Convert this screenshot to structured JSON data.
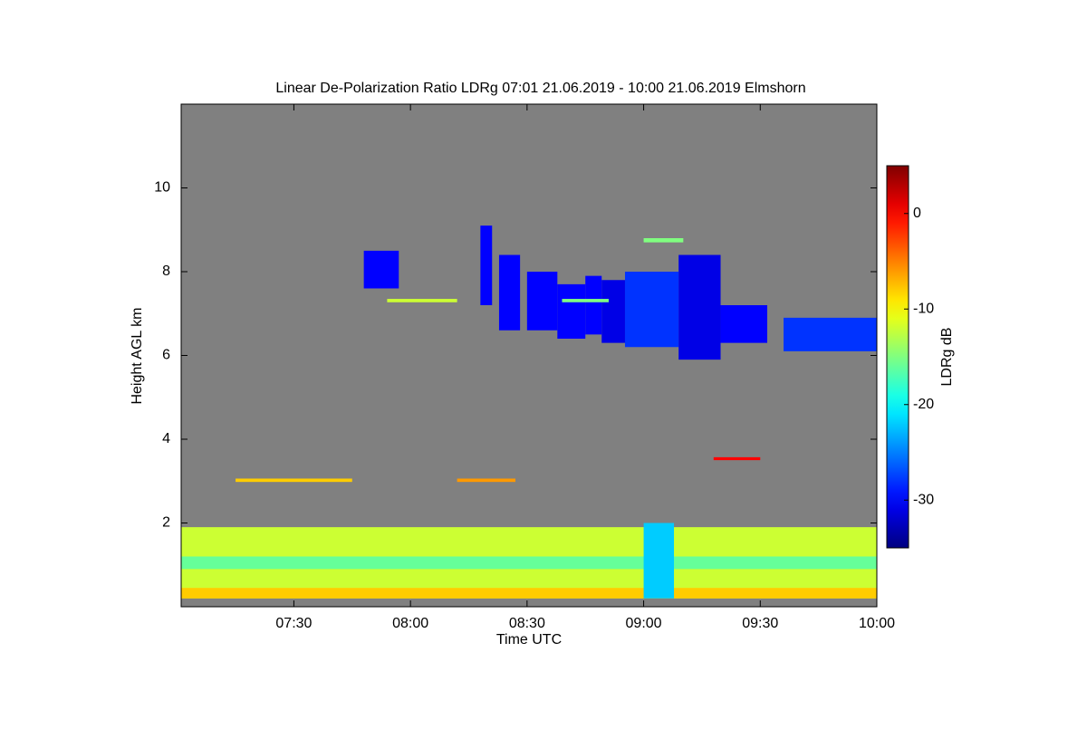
{
  "chart_data": {
    "type": "heatmap",
    "title": "Linear De-Polarization Ratio LDRg   07:01 21.06.2019 - 10:00 21.06.2019 Elmshorn",
    "x_label": "Time UTC",
    "y_label": "Height AGL km",
    "colorbar_label": "LDRg dB",
    "background": "#808080",
    "xlim": [
      7.0167,
      10.0
    ],
    "xticks": [
      {
        "value": 7.5,
        "label": "07:30"
      },
      {
        "value": 8.0,
        "label": "08:00"
      },
      {
        "value": 8.5,
        "label": "08:30"
      },
      {
        "value": 9.0,
        "label": "09:00"
      },
      {
        "value": 9.5,
        "label": "09:30"
      },
      {
        "value": 10.0,
        "label": "10:00"
      }
    ],
    "ylim": [
      0,
      12
    ],
    "yticks": [
      2,
      4,
      6,
      8,
      10
    ],
    "clim": [
      -35,
      5
    ],
    "cticks": [
      -30,
      -20,
      -10,
      0
    ],
    "cells": [
      {
        "x": [
          7.0167,
          10.0
        ],
        "y": [
          0.2,
          1.9
        ],
        "value": -12
      },
      {
        "x": [
          7.0167,
          10.0
        ],
        "y": [
          0.2,
          0.45
        ],
        "value": -8
      },
      {
        "x": [
          7.0167,
          10.0
        ],
        "y": [
          0.9,
          1.2
        ],
        "value": -16
      },
      {
        "x": [
          9.0,
          9.13
        ],
        "y": [
          0.2,
          2.0
        ],
        "value": -22
      },
      {
        "x": [
          7.8,
          7.95
        ],
        "y": [
          7.6,
          8.5
        ],
        "value": -30
      },
      {
        "x": [
          8.3,
          8.35
        ],
        "y": [
          7.2,
          9.1
        ],
        "value": -30
      },
      {
        "x": [
          8.38,
          8.47
        ],
        "y": [
          6.6,
          8.4
        ],
        "value": -30
      },
      {
        "x": [
          8.5,
          8.63
        ],
        "y": [
          6.6,
          8.0
        ],
        "value": -30
      },
      {
        "x": [
          8.63,
          8.75
        ],
        "y": [
          6.4,
          7.7
        ],
        "value": -30
      },
      {
        "x": [
          8.75,
          8.82
        ],
        "y": [
          6.5,
          7.9
        ],
        "value": -30
      },
      {
        "x": [
          8.82,
          8.92
        ],
        "y": [
          6.3,
          7.8
        ],
        "value": -31
      },
      {
        "x": [
          8.92,
          9.15
        ],
        "y": [
          6.2,
          8.0
        ],
        "value": -28
      },
      {
        "x": [
          9.15,
          9.33
        ],
        "y": [
          5.9,
          8.4
        ],
        "value": -31
      },
      {
        "x": [
          9.33,
          9.53
        ],
        "y": [
          6.3,
          7.2
        ],
        "value": -30
      },
      {
        "x": [
          9.6,
          10.0
        ],
        "y": [
          6.1,
          6.9
        ],
        "value": -28
      },
      {
        "x": [
          9.0,
          9.17
        ],
        "y": [
          8.7,
          8.8
        ],
        "value": -15
      },
      {
        "x": [
          7.9,
          8.2
        ],
        "y": [
          7.27,
          7.35
        ],
        "value": -12
      },
      {
        "x": [
          8.65,
          8.85
        ],
        "y": [
          7.27,
          7.35
        ],
        "value": -15
      },
      {
        "x": [
          7.25,
          7.75
        ],
        "y": [
          2.98,
          3.06
        ],
        "value": -8
      },
      {
        "x": [
          8.2,
          8.45
        ],
        "y": [
          2.98,
          3.06
        ],
        "value": -6
      },
      {
        "x": [
          9.3,
          9.5
        ],
        "y": [
          3.5,
          3.57
        ],
        "value": 0
      }
    ]
  }
}
